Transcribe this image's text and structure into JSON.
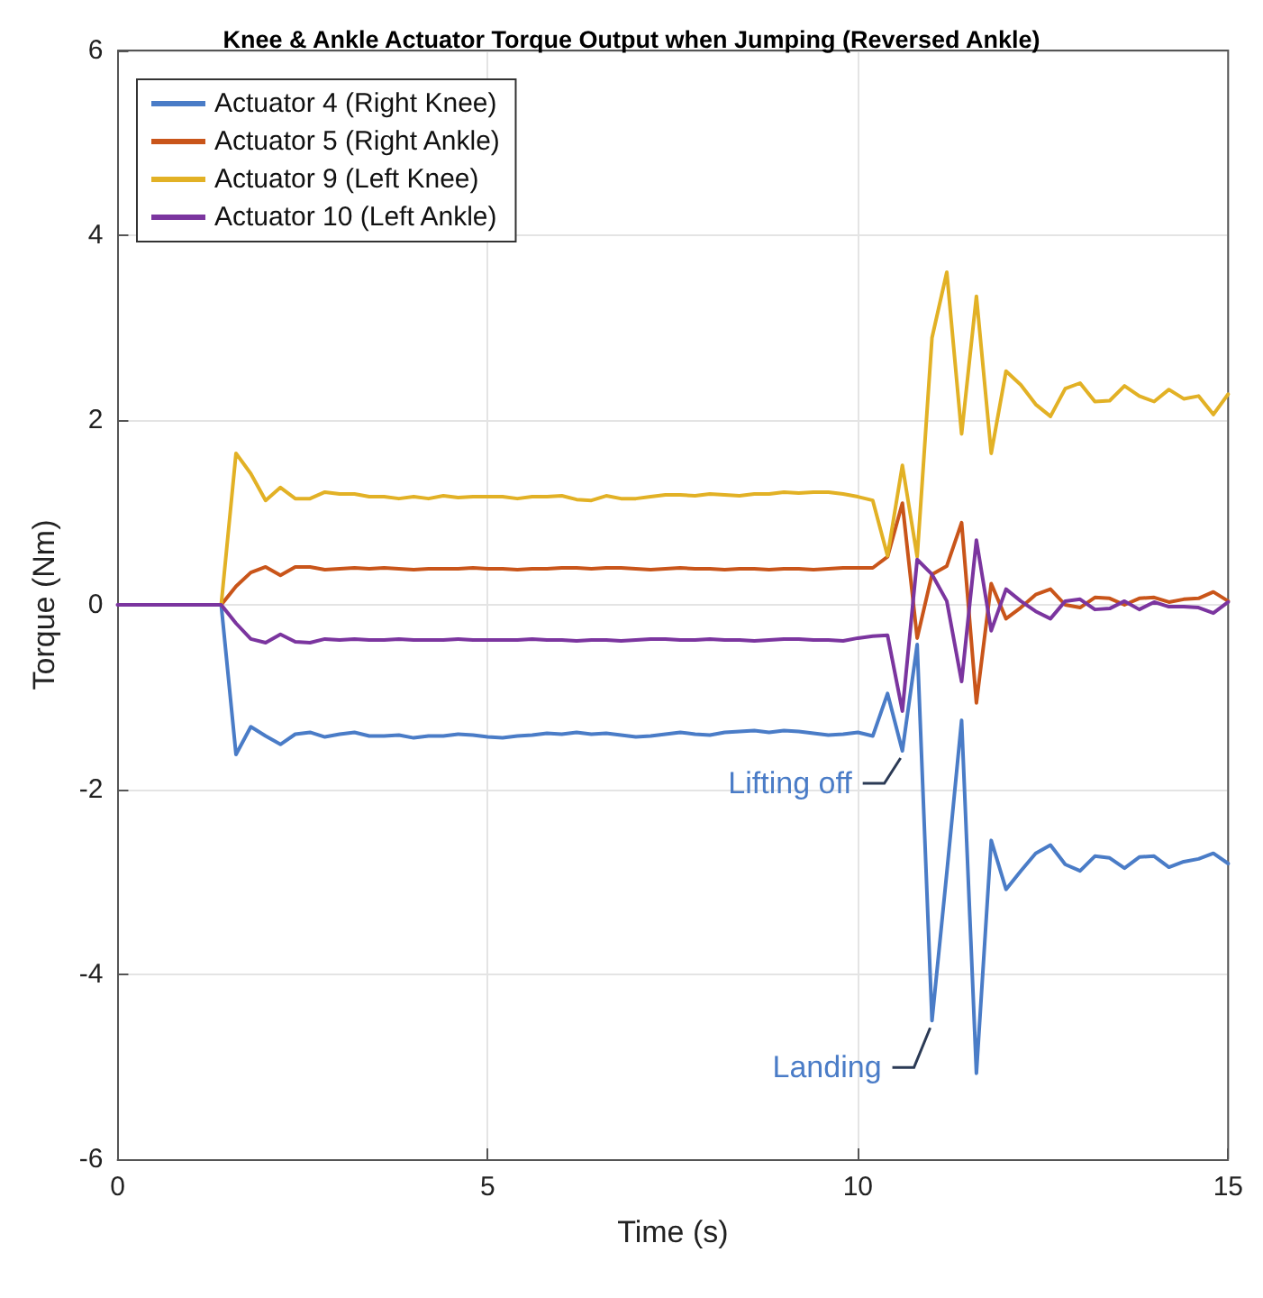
{
  "chart_data": {
    "type": "line",
    "title": "Knee & Ankle Actuator Torque Output when Jumping (Reversed Ankle)",
    "xlabel": "Time (s)",
    "ylabel": "Torque (Nm)",
    "x": [
      0,
      0.2,
      0.4,
      0.6,
      0.8,
      1,
      1.2,
      1.4,
      1.6,
      1.8,
      2,
      2.2,
      2.4,
      2.6,
      2.8,
      3,
      3.2,
      3.4,
      3.6,
      3.8,
      4,
      4.2,
      4.4,
      4.6,
      4.8,
      5,
      5.2,
      5.4,
      5.6,
      5.8,
      6,
      6.2,
      6.4,
      6.6,
      6.8,
      7,
      7.2,
      7.4,
      7.6,
      7.8,
      8,
      8.2,
      8.4,
      8.6,
      8.8,
      9,
      9.2,
      9.4,
      9.6,
      9.8,
      10,
      10.2,
      10.4,
      10.6,
      10.8,
      11,
      11.2,
      11.4,
      11.6,
      11.8,
      12,
      12.2,
      12.4,
      12.6,
      12.8,
      13,
      13.2,
      13.4,
      13.6,
      13.8,
      14,
      14.2,
      14.4,
      14.6,
      14.8,
      15
    ],
    "series": [
      {
        "name": "Actuator 4 (Right Knee)",
        "color": "#4a7cc7",
        "values": [
          null,
          null,
          null,
          null,
          null,
          null,
          null,
          0,
          -1.62,
          -1.32,
          -1.42,
          -1.51,
          -1.4,
          -1.38,
          -1.43,
          -1.4,
          -1.38,
          -1.42,
          -1.42,
          -1.41,
          -1.44,
          -1.42,
          -1.42,
          -1.4,
          -1.41,
          -1.43,
          -1.44,
          -1.42,
          -1.41,
          -1.39,
          -1.4,
          -1.38,
          -1.4,
          -1.39,
          -1.41,
          -1.43,
          -1.42,
          -1.4,
          -1.38,
          -1.4,
          -1.41,
          -1.38,
          -1.37,
          -1.36,
          -1.38,
          -1.36,
          -1.37,
          -1.39,
          -1.41,
          -1.4,
          -1.38,
          -1.42,
          -0.96,
          -1.58,
          -0.43,
          -4.5,
          -2.9,
          -1.25,
          -5.07,
          -2.55,
          -3.08,
          -2.88,
          -2.69,
          -2.6,
          -2.81,
          -2.88,
          -2.72,
          -2.74,
          -2.85,
          -2.73,
          -2.72,
          -2.84,
          -2.78,
          -2.75,
          -2.69,
          -2.8
        ]
      },
      {
        "name": "Actuator 5 (Right Ankle)",
        "color": "#c9551a",
        "values": [
          null,
          null,
          null,
          null,
          null,
          null,
          null,
          0,
          0.2,
          0.35,
          0.41,
          0.32,
          0.41,
          0.41,
          0.38,
          0.39,
          0.4,
          0.39,
          0.4,
          0.39,
          0.38,
          0.39,
          0.39,
          0.39,
          0.4,
          0.39,
          0.39,
          0.38,
          0.39,
          0.39,
          0.4,
          0.4,
          0.39,
          0.4,
          0.4,
          0.39,
          0.38,
          0.39,
          0.4,
          0.39,
          0.39,
          0.38,
          0.39,
          0.39,
          0.38,
          0.39,
          0.39,
          0.38,
          0.39,
          0.4,
          0.4,
          0.4,
          0.52,
          1.1,
          -0.36,
          0.33,
          0.42,
          0.89,
          -1.06,
          0.23,
          -0.15,
          -0.03,
          0.11,
          0.17,
          0,
          -0.03,
          0.08,
          0.07,
          0,
          0.07,
          0.08,
          0.03,
          0.06,
          0.07,
          0.14,
          0.04
        ]
      },
      {
        "name": "Actuator 9 (Left Knee)",
        "color": "#e2b125",
        "values": [
          null,
          null,
          null,
          null,
          null,
          null,
          null,
          0,
          1.64,
          1.42,
          1.13,
          1.27,
          1.15,
          1.15,
          1.22,
          1.2,
          1.2,
          1.17,
          1.17,
          1.15,
          1.17,
          1.15,
          1.18,
          1.16,
          1.17,
          1.17,
          1.17,
          1.15,
          1.17,
          1.17,
          1.18,
          1.14,
          1.13,
          1.18,
          1.15,
          1.15,
          1.17,
          1.19,
          1.19,
          1.18,
          1.2,
          1.19,
          1.18,
          1.2,
          1.2,
          1.22,
          1.21,
          1.22,
          1.22,
          1.2,
          1.17,
          1.13,
          0.53,
          1.51,
          0.52,
          2.89,
          3.6,
          1.85,
          3.34,
          1.64,
          2.53,
          2.38,
          2.17,
          2.04,
          2.34,
          2.4,
          2.2,
          2.21,
          2.37,
          2.26,
          2.2,
          2.33,
          2.23,
          2.26,
          2.06,
          2.28
        ]
      },
      {
        "name": "Actuator 10 (Left Ankle)",
        "color": "#7b359f",
        "values": [
          0,
          0,
          0,
          0,
          0,
          0,
          0,
          0,
          -0.2,
          -0.37,
          -0.41,
          -0.32,
          -0.4,
          -0.41,
          -0.37,
          -0.38,
          -0.37,
          -0.38,
          -0.38,
          -0.37,
          -0.38,
          -0.38,
          -0.38,
          -0.37,
          -0.38,
          -0.38,
          -0.38,
          -0.38,
          -0.37,
          -0.38,
          -0.38,
          -0.39,
          -0.38,
          -0.38,
          -0.39,
          -0.38,
          -0.37,
          -0.37,
          -0.38,
          -0.38,
          -0.37,
          -0.38,
          -0.38,
          -0.39,
          -0.38,
          -0.37,
          -0.37,
          -0.38,
          -0.38,
          -0.39,
          -0.36,
          -0.34,
          -0.33,
          -1.15,
          0.49,
          0.33,
          0.04,
          -0.83,
          0.7,
          -0.28,
          0.17,
          0.04,
          -0.07,
          -0.15,
          0.04,
          0.06,
          -0.05,
          -0.04,
          0.04,
          -0.05,
          0.03,
          -0.02,
          -0.02,
          -0.03,
          -0.09,
          0.03
        ]
      }
    ],
    "xlim": [
      0,
      15
    ],
    "xticks": [
      0,
      5,
      10,
      15
    ],
    "ylim": [
      -6,
      6
    ],
    "yticks": [
      -6,
      -4,
      -2,
      0,
      2,
      4,
      6
    ],
    "grid": true,
    "legend": "top left",
    "line_style": "solid",
    "marker": "none",
    "annotations": [
      {
        "text": "Lifting off",
        "x": 10.6,
        "y": -1.58
      },
      {
        "text": "Landing",
        "x": 11,
        "y": -4.5
      }
    ]
  }
}
